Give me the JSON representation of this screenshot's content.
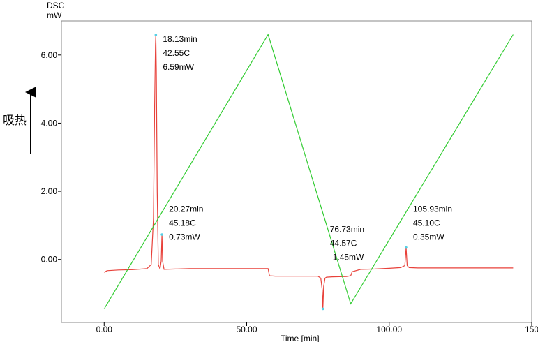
{
  "chart_data": {
    "type": "line",
    "y_unit_top": "DSC",
    "y_unit_bottom": "mW",
    "endotherm_label": "吸热",
    "xlabel": "Time [min]",
    "xlim": [
      -15,
      150
    ],
    "ylim": [
      -1.85,
      7.0
    ],
    "x_ticks": [
      0,
      50,
      100,
      150
    ],
    "x_tick_labels": [
      "0.00",
      "50.00",
      "100.00",
      "150"
    ],
    "y_ticks": [
      0,
      2,
      4,
      6
    ],
    "y_tick_labels": [
      "0.00",
      "2.00",
      "4.00",
      "6.00"
    ],
    "grid": false,
    "series": [
      {
        "color": "#e8413a",
        "x": [
          0,
          1,
          5,
          10,
          15,
          16.5,
          17.3,
          17.7,
          18.0,
          18.13,
          18.3,
          18.6,
          19.0,
          19.6,
          20.0,
          20.27,
          20.5,
          21,
          25,
          30,
          40,
          50,
          57.5,
          58.0,
          60,
          65,
          70,
          75,
          76.0,
          76.5,
          76.73,
          77.0,
          77.5,
          78,
          80,
          85,
          86.5,
          87.0,
          90,
          95,
          100,
          104,
          105.5,
          105.93,
          106.3,
          107,
          110,
          120,
          130,
          140,
          143.5
        ],
        "y": [
          -0.38,
          -0.33,
          -0.31,
          -0.3,
          -0.27,
          -0.15,
          1.2,
          4.5,
          6.3,
          6.59,
          5.6,
          2.0,
          -0.15,
          -0.28,
          -0.05,
          0.73,
          -0.05,
          -0.29,
          -0.28,
          -0.27,
          -0.27,
          -0.27,
          -0.27,
          -0.48,
          -0.49,
          -0.49,
          -0.49,
          -0.49,
          -0.55,
          -0.9,
          -1.45,
          -0.8,
          -0.55,
          -0.52,
          -0.51,
          -0.5,
          -0.48,
          -0.36,
          -0.29,
          -0.28,
          -0.26,
          -0.24,
          -0.18,
          0.35,
          -0.18,
          -0.24,
          -0.25,
          -0.25,
          -0.25,
          -0.25,
          -0.25
        ]
      },
      {
        "color": "#33cc33",
        "x": [
          0,
          57.5,
          86.5,
          143.5
        ],
        "y": [
          -1.45,
          6.6,
          -1.3,
          6.6
        ]
      }
    ],
    "annotations": [
      {
        "x": 18.13,
        "y": 6.59,
        "lines": [
          "18.13min",
          "42.55C",
          "6.59mW"
        ]
      },
      {
        "x": 20.27,
        "y": 0.73,
        "lines": [
          "20.27min",
          "45.18C",
          "0.73mW"
        ]
      },
      {
        "x": 76.73,
        "y": -1.45,
        "lines": [
          "76.73min",
          "44.57C",
          "-1.45mW"
        ]
      },
      {
        "x": 105.93,
        "y": 0.35,
        "lines": [
          "105.93min",
          "45.10C",
          "0.35mW"
        ]
      }
    ]
  }
}
